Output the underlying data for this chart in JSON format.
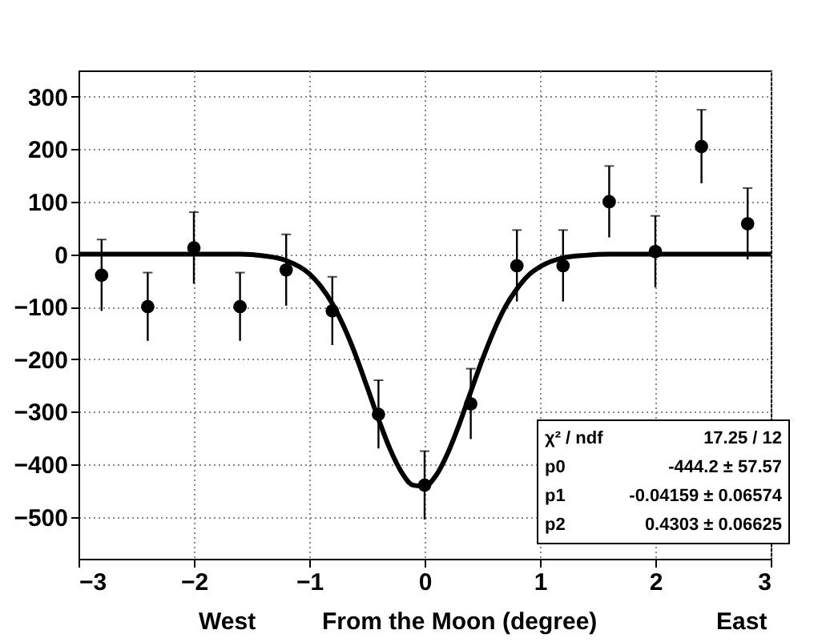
{
  "chart_data": {
    "type": "scatter",
    "xlabel": "From the Moon (degree)",
    "annotations": [
      "West",
      "East",
      "χ² / ndf",
      "17.25 / 12",
      "p0",
      "-444.2 ± 57.57",
      "p1",
      "-0.04159 ± 0.06574",
      "p2",
      "0.4303 ± 0.06625"
    ],
    "xlim": [
      -3,
      3
    ],
    "xticks": [
      -3,
      -2,
      -1,
      0,
      1,
      2,
      3
    ],
    "ylim": [
      -580,
      350
    ],
    "yticks": [
      -500,
      -400,
      -300,
      -200,
      -100,
      0,
      100,
      200,
      300
    ],
    "grid": true,
    "series": [
      {
        "color": "#000000",
        "marker": "circle",
        "x": [
          -2.8,
          -2.4,
          -2.0,
          -1.6,
          -1.2,
          -0.8,
          -0.4,
          0,
          0.4,
          0.8,
          1.2,
          1.6,
          2.0,
          2.4,
          2.8
        ],
        "values": [
          -40,
          -100,
          12,
          -100,
          -30,
          -108,
          -305,
          -440,
          -285,
          -22,
          -22,
          100,
          5,
          205,
          58
        ],
        "errors": [
          68,
          65,
          68,
          65,
          68,
          65,
          65,
          65,
          67,
          68,
          68,
          68,
          68,
          70,
          68
        ]
      },
      {
        "type": "line",
        "color": "#000000",
        "x": [
          -3,
          -1.6,
          -1.4,
          -1.2,
          -1.0,
          -0.9,
          -0.8,
          -0.7,
          -0.6,
          -0.5,
          -0.4,
          -0.3,
          -0.2,
          -0.1,
          0,
          0.1,
          0.2,
          0.3,
          0.4,
          0.5,
          0.6,
          0.7,
          0.8,
          0.9,
          1.0,
          1.2,
          1.4,
          1.6,
          3
        ],
        "values": [
          0,
          0,
          -3,
          -12,
          -37,
          -61,
          -94,
          -138,
          -191,
          -252,
          -314,
          -371,
          -415,
          -440,
          -442,
          -421,
          -379,
          -324,
          -262,
          -201,
          -146,
          -100,
          -66,
          -40,
          -24,
          -7,
          -2,
          0,
          0
        ]
      }
    ]
  }
}
